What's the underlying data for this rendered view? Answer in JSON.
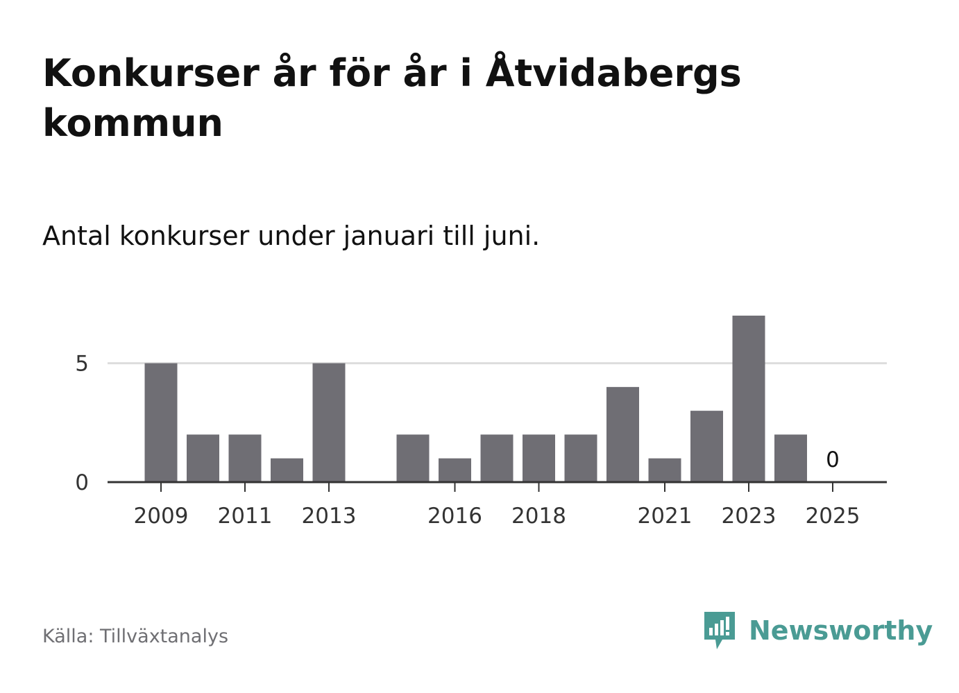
{
  "header": {
    "title": "Konkurser år för år i Åtvidabergs kommun",
    "subtitle": "Antal konkurser under januari till juni."
  },
  "footer": {
    "source": "Källa: Tillväxtanalys",
    "brand": "Newsworthy",
    "brand_icon": "newsworthy-logo-icon"
  },
  "colors": {
    "bar": "#6f6e74",
    "grid": "#dddddd",
    "axis": "#333333",
    "brand": "#4a9b94"
  },
  "chart_data": {
    "type": "bar",
    "categories": [
      "2009",
      "2010",
      "2011",
      "2012",
      "2013",
      "2014",
      "2015",
      "2016",
      "2017",
      "2018",
      "2019",
      "2020",
      "2021",
      "2022",
      "2023",
      "2024",
      "2025"
    ],
    "values": [
      5,
      2,
      2,
      1,
      5,
      null,
      2,
      1,
      2,
      2,
      2,
      4,
      1,
      3,
      7,
      2,
      0
    ],
    "xtick_labels": [
      "2009",
      "2011",
      "2013",
      "2016",
      "2018",
      "2021",
      "2023",
      "2025"
    ],
    "yticks": [
      0,
      5
    ],
    "ylim": [
      0,
      7
    ],
    "grid": true,
    "annotations": [
      {
        "x": "2025",
        "text": "0"
      }
    ],
    "title": "Konkurser år för år i Åtvidabergs kommun",
    "subtitle": "Antal konkurser under januari till juni.",
    "xlabel": "",
    "ylabel": ""
  }
}
